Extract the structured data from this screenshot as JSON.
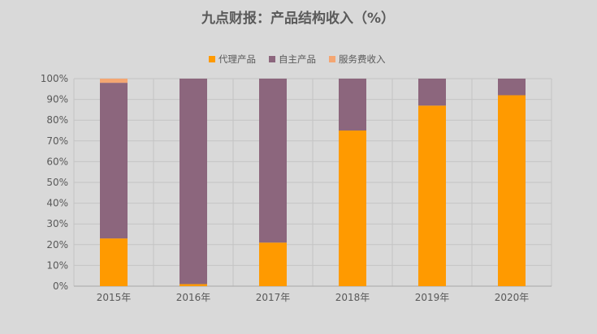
{
  "chart_data": {
    "type": "bar",
    "stacked": true,
    "title": "九点财报：产品结构收入（%）",
    "categories": [
      "2015年",
      "2016年",
      "2017年",
      "2018年",
      "2019年",
      "2020年"
    ],
    "series": [
      {
        "name": "代理产品",
        "color": "#ff9a00",
        "values": [
          23,
          1,
          21,
          75,
          87,
          92
        ]
      },
      {
        "name": "自主产品",
        "color": "#8c667d",
        "values": [
          75,
          99,
          79,
          25,
          13,
          8
        ]
      },
      {
        "name": "服务费收入",
        "color": "#f4a672",
        "values": [
          2,
          0,
          0,
          0,
          0,
          0
        ]
      }
    ],
    "yticks": [
      "0%",
      "10%",
      "20%",
      "30%",
      "40%",
      "50%",
      "60%",
      "70%",
      "80%",
      "90%",
      "100%"
    ],
    "ylim": [
      0,
      100
    ],
    "legend_position": "top",
    "grid": true
  }
}
